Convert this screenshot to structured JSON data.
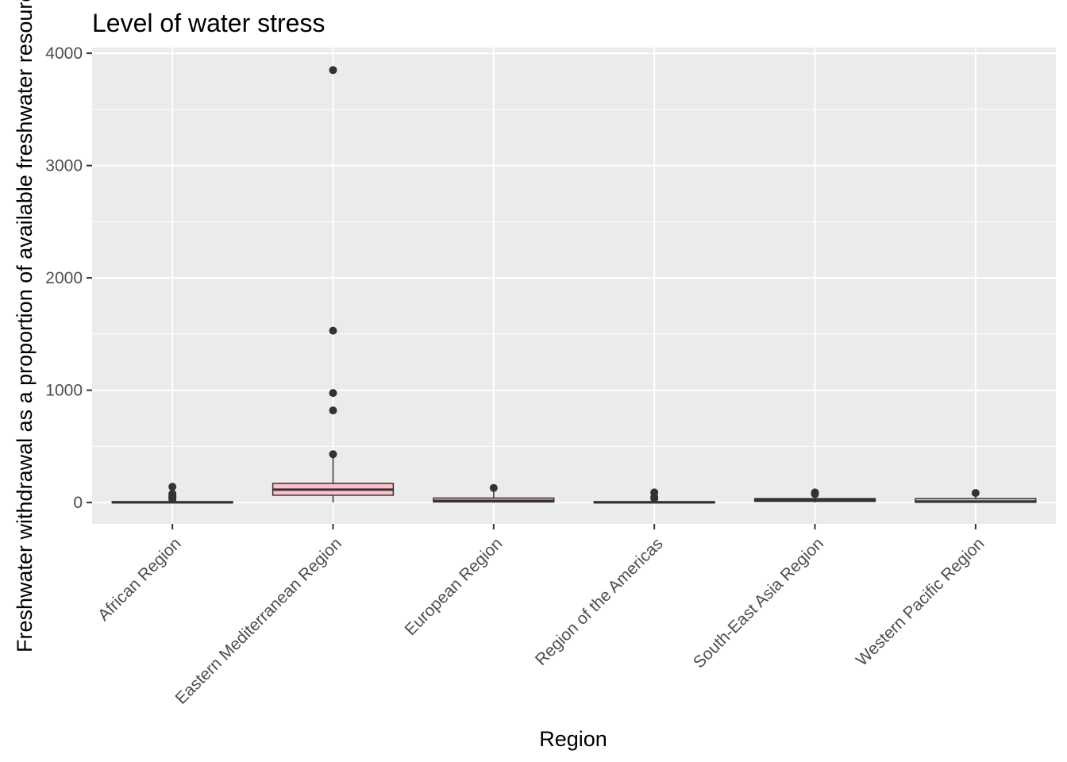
{
  "chart_data": {
    "type": "boxplot",
    "title": "Level of water stress",
    "xlabel": "Region",
    "ylabel": "Freshwater withdrawal as a proportion of available freshwater resources",
    "ylim": [
      -190,
      4050
    ],
    "y_ticks": [
      0,
      1000,
      2000,
      3000,
      4000
    ],
    "grid": true,
    "legend": "none",
    "box_fill": "#ffc0cb",
    "box_stroke": "#333333",
    "panel_background": "#ebebeb",
    "categories": [
      "African Region",
      "Eastern Mediterranean Region",
      "European Region",
      "Region of the Americas",
      "South-East Asia Region",
      "Western Pacific Region"
    ],
    "boxes": [
      {
        "category": "African Region",
        "whisker_low": 0,
        "q1": 0,
        "median": 2,
        "q3": 8,
        "whisker_high": 20,
        "outliers": [
          140,
          78,
          65,
          55,
          45,
          35,
          28
        ]
      },
      {
        "category": "Eastern Mediterranean Region",
        "whisker_low": 0,
        "q1": 65,
        "median": 115,
        "q3": 170,
        "whisker_high": 400,
        "outliers": [
          3850,
          1530,
          975,
          820,
          430
        ]
      },
      {
        "category": "European Region",
        "whisker_low": 0,
        "q1": 5,
        "median": 15,
        "q3": 40,
        "whisker_high": 95,
        "outliers": [
          130
        ]
      },
      {
        "category": "Region of the Americas",
        "whisker_low": 0,
        "q1": 0,
        "median": 2,
        "q3": 8,
        "whisker_high": 25,
        "outliers": [
          90,
          50,
          35
        ]
      },
      {
        "category": "South-East Asia Region",
        "whisker_low": 0,
        "q1": 10,
        "median": 25,
        "q3": 35,
        "whisker_high": 60,
        "outliers": [
          90,
          75
        ]
      },
      {
        "category": "Western Pacific Region",
        "whisker_low": 0,
        "q1": 2,
        "median": 10,
        "q3": 35,
        "whisker_high": 80,
        "outliers": [
          85
        ]
      }
    ]
  }
}
